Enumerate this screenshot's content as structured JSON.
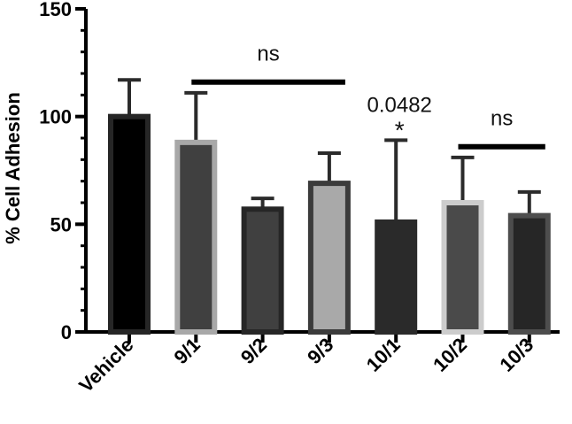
{
  "chart_data": {
    "type": "bar",
    "ylabel": "% Cell Adhesion",
    "ylim": [
      0,
      150
    ],
    "yticks": [
      0,
      50,
      100,
      150
    ],
    "grid": false,
    "categories": [
      "Vehicle",
      "9/1",
      "9/2",
      "9/3",
      "10/1",
      "10/2",
      "10/3"
    ],
    "values": [
      100,
      88,
      57,
      69,
      51,
      60,
      54
    ],
    "error_upper": [
      117,
      111,
      62,
      83,
      89,
      81,
      65
    ],
    "bar_fill_colors": [
      "#000000",
      "#404040",
      "#404040",
      "#a9a9a9",
      "#2a2a2a",
      "#4a4a4a",
      "#262626"
    ],
    "bar_edge_colors": [
      "#262626",
      "#a8a8a8",
      "#262626",
      "#3b3b3b",
      "#2a2a2a",
      "#cccccc",
      "#4d4d4d"
    ],
    "annotations": [
      {
        "type": "bracket",
        "from": "9/1",
        "to": "9/3",
        "text": "ns",
        "y": 116
      },
      {
        "type": "label",
        "category": "10/1",
        "text": "0.0482",
        "star": "*"
      },
      {
        "type": "bracket",
        "from": "10/2",
        "to": "10/3",
        "text": "ns",
        "y": 86
      }
    ]
  }
}
